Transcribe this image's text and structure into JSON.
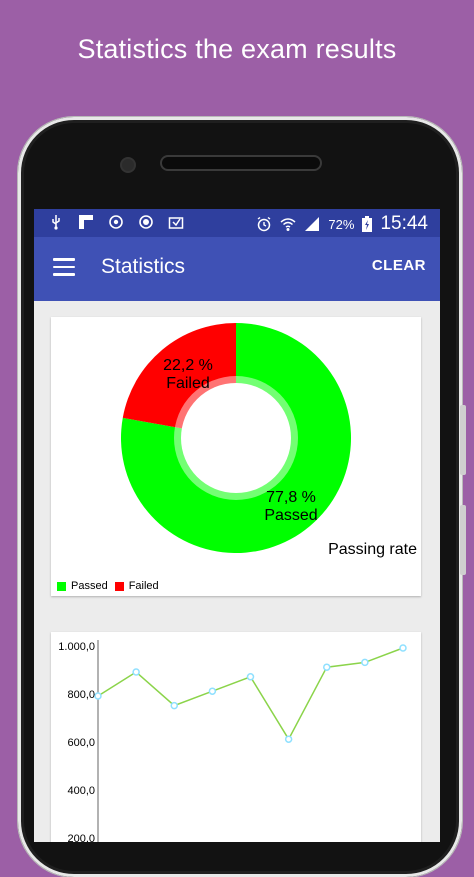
{
  "headline": "Statistics the exam results",
  "status_bar": {
    "battery": "72%",
    "time": "15:44"
  },
  "app_bar": {
    "title": "Statistics",
    "clear_label": "CLEAR"
  },
  "colors": {
    "primary": "#3f51b5",
    "primary_dark": "#2f3f9e",
    "passed": "#00ff00",
    "failed": "#ff0000",
    "line": "#8bd44a",
    "point": "#8fe0ff"
  },
  "pie": {
    "passed_pct": "77,8 %",
    "passed_label": "Passed",
    "failed_pct": "22,2 %",
    "failed_label": "Failed",
    "description": "Passing rate",
    "legend": [
      "Passed",
      "Failed"
    ]
  },
  "chart_data": [
    {
      "type": "pie",
      "values": [
        77.8,
        22.2
      ],
      "labels": [
        "Passed",
        "Failed"
      ],
      "description": "Passing rate",
      "legend_position": "bottom-left"
    },
    {
      "type": "line",
      "x": [
        1,
        2,
        3,
        4,
        5,
        6,
        7,
        8,
        9
      ],
      "values": [
        800,
        900,
        760,
        820,
        880,
        620,
        920,
        940,
        1000
      ],
      "y_ticks": [
        "1.000,0",
        "800,0",
        "600,0",
        "400,0",
        "200,0"
      ],
      "ylim": [
        200,
        1000
      ]
    }
  ]
}
